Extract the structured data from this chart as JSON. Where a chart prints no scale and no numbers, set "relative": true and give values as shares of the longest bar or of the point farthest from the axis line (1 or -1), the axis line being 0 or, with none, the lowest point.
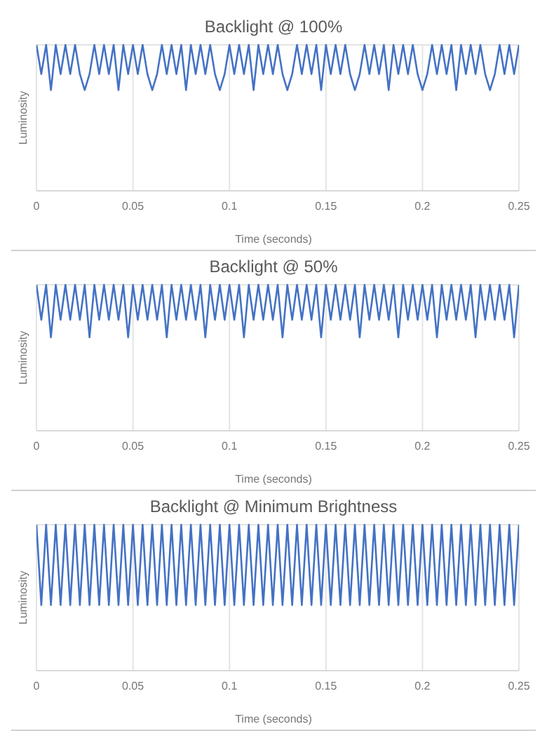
{
  "chart_data": [
    {
      "type": "line",
      "title": "Backlight @ 100%",
      "xlabel": "Time (seconds)",
      "ylabel": "Luminosity",
      "relative": true,
      "grid": true,
      "legend": false,
      "marker": "none",
      "line_style": "solid",
      "xlim": [
        0,
        0.25
      ],
      "xticks": [
        0,
        0.05,
        0.1,
        0.15,
        0.2,
        0.25
      ],
      "x": [
        0,
        0.0025,
        0.005,
        0.0075,
        0.01,
        0.0125,
        0.015,
        0.0175,
        0.02,
        0.0225,
        0.025,
        0.0275,
        0.03,
        0.0325,
        0.035,
        0.0375,
        0.04,
        0.0425,
        0.045,
        0.0475,
        0.05,
        0.0525,
        0.055,
        0.0575,
        0.06,
        0.0625,
        0.065,
        0.0675,
        0.07,
        0.0725,
        0.075,
        0.0775,
        0.08,
        0.0825,
        0.085,
        0.0875,
        0.09,
        0.0925,
        0.095,
        0.0975,
        0.1,
        0.1025,
        0.105,
        0.1075,
        0.11,
        0.1125,
        0.115,
        0.1175,
        0.12,
        0.1225,
        0.125,
        0.1275,
        0.13,
        0.1325,
        0.135,
        0.1375,
        0.14,
        0.1425,
        0.145,
        0.1475,
        0.15,
        0.1525,
        0.155,
        0.1575,
        0.16,
        0.1625,
        0.165,
        0.1675,
        0.17,
        0.1725,
        0.175,
        0.1775,
        0.18,
        0.1825,
        0.185,
        0.1875,
        0.19,
        0.1925,
        0.195,
        0.1975,
        0.2,
        0.2025,
        0.205,
        0.2075,
        0.21,
        0.2125,
        0.215,
        0.2175,
        0.22,
        0.2225,
        0.225,
        0.2275,
        0.23,
        0.2325,
        0.235,
        0.2375,
        0.24,
        0.2425,
        0.245,
        0.2475,
        0.25
      ],
      "series": [
        {
          "color": "#4472c4",
          "values": [
            1,
            0.8,
            1,
            0.69,
            1,
            0.8,
            1,
            0.8,
            1,
            0.8,
            0.69,
            0.8,
            1,
            0.8,
            1,
            0.8,
            1,
            0.69,
            1,
            0.8,
            1,
            0.8,
            1,
            0.8,
            0.69,
            0.8,
            1,
            0.8,
            1,
            0.8,
            1,
            0.69,
            1,
            0.8,
            1,
            0.8,
            1,
            0.8,
            0.69,
            0.8,
            1,
            0.8,
            1,
            0.8,
            1,
            0.69,
            1,
            0.8,
            1,
            0.8,
            1,
            0.8,
            0.69,
            0.8,
            1,
            0.8,
            1,
            0.8,
            1,
            0.69,
            1,
            0.8,
            1,
            0.8,
            1,
            0.8,
            0.69,
            0.8,
            1,
            0.8,
            1,
            0.8,
            1,
            0.69,
            1,
            0.8,
            1,
            0.8,
            1,
            0.8,
            0.69,
            0.8,
            1,
            0.8,
            1,
            0.8,
            1,
            0.69,
            1,
            0.8,
            1,
            0.8,
            1,
            0.8,
            0.69,
            0.8,
            1,
            0.8,
            1,
            0.8,
            1
          ]
        }
      ]
    },
    {
      "type": "line",
      "title": "Backlight @ 50%",
      "xlabel": "Time (seconds)",
      "ylabel": "Luminosity",
      "relative": true,
      "grid": true,
      "legend": false,
      "marker": "none",
      "line_style": "solid",
      "xlim": [
        0,
        0.25
      ],
      "xticks": [
        0,
        0.05,
        0.1,
        0.15,
        0.2,
        0.25
      ],
      "x": [
        0,
        0.0025,
        0.005,
        0.0075,
        0.01,
        0.0125,
        0.015,
        0.0175,
        0.02,
        0.0225,
        0.025,
        0.0275,
        0.03,
        0.0325,
        0.035,
        0.0375,
        0.04,
        0.0425,
        0.045,
        0.0475,
        0.05,
        0.0525,
        0.055,
        0.0575,
        0.06,
        0.0625,
        0.065,
        0.0675,
        0.07,
        0.0725,
        0.075,
        0.0775,
        0.08,
        0.0825,
        0.085,
        0.0875,
        0.09,
        0.0925,
        0.095,
        0.0975,
        0.1,
        0.1025,
        0.105,
        0.1075,
        0.11,
        0.1125,
        0.115,
        0.1175,
        0.12,
        0.1225,
        0.125,
        0.1275,
        0.13,
        0.1325,
        0.135,
        0.1375,
        0.14,
        0.1425,
        0.145,
        0.1475,
        0.15,
        0.1525,
        0.155,
        0.1575,
        0.16,
        0.1625,
        0.165,
        0.1675,
        0.17,
        0.1725,
        0.175,
        0.1775,
        0.18,
        0.1825,
        0.185,
        0.1875,
        0.19,
        0.1925,
        0.195,
        0.1975,
        0.2,
        0.2025,
        0.205,
        0.2075,
        0.21,
        0.2125,
        0.215,
        0.2175,
        0.22,
        0.2225,
        0.225,
        0.2275,
        0.23,
        0.2325,
        0.235,
        0.2375,
        0.24,
        0.2425,
        0.245,
        0.2475,
        0.25
      ],
      "series": [
        {
          "color": "#4472c4",
          "values": [
            1,
            0.76,
            1,
            0.64,
            1,
            0.76,
            1,
            0.76,
            1,
            0.76,
            1,
            0.64,
            1,
            0.76,
            1,
            0.76,
            1,
            0.76,
            1,
            0.64,
            1,
            0.76,
            1,
            0.76,
            1,
            0.76,
            1,
            0.64,
            1,
            0.76,
            1,
            0.76,
            1,
            0.76,
            1,
            0.64,
            1,
            0.76,
            1,
            0.76,
            1,
            0.76,
            1,
            0.64,
            1,
            0.76,
            1,
            0.76,
            1,
            0.76,
            1,
            0.64,
            1,
            0.76,
            1,
            0.76,
            1,
            0.76,
            1,
            0.64,
            1,
            0.76,
            1,
            0.76,
            1,
            0.76,
            1,
            0.64,
            1,
            0.76,
            1,
            0.76,
            1,
            0.76,
            1,
            0.64,
            1,
            0.76,
            1,
            0.76,
            1,
            0.76,
            1,
            0.64,
            1,
            0.76,
            1,
            0.76,
            1,
            0.76,
            1,
            0.64,
            1,
            0.76,
            1,
            0.76,
            1,
            0.76,
            1,
            0.64,
            1
          ]
        }
      ]
    },
    {
      "type": "line",
      "title": "Backlight @ Minimum Brightness",
      "xlabel": "Time (seconds)",
      "ylabel": "Luminosity",
      "relative": true,
      "grid": true,
      "legend": false,
      "marker": "none",
      "line_style": "solid",
      "xlim": [
        0,
        0.25
      ],
      "xticks": [
        0,
        0.05,
        0.1,
        0.15,
        0.2,
        0.25
      ],
      "x": [
        0,
        0.0025,
        0.005,
        0.0075,
        0.01,
        0.0125,
        0.015,
        0.0175,
        0.02,
        0.0225,
        0.025,
        0.0275,
        0.03,
        0.0325,
        0.035,
        0.0375,
        0.04,
        0.0425,
        0.045,
        0.0475,
        0.05,
        0.0525,
        0.055,
        0.0575,
        0.06,
        0.0625,
        0.065,
        0.0675,
        0.07,
        0.0725,
        0.075,
        0.0775,
        0.08,
        0.0825,
        0.085,
        0.0875,
        0.09,
        0.0925,
        0.095,
        0.0975,
        0.1,
        0.1025,
        0.105,
        0.1075,
        0.11,
        0.1125,
        0.115,
        0.1175,
        0.12,
        0.1225,
        0.125,
        0.1275,
        0.13,
        0.1325,
        0.135,
        0.1375,
        0.14,
        0.1425,
        0.145,
        0.1475,
        0.15,
        0.1525,
        0.155,
        0.1575,
        0.16,
        0.1625,
        0.165,
        0.1675,
        0.17,
        0.1725,
        0.175,
        0.1775,
        0.18,
        0.1825,
        0.185,
        0.1875,
        0.19,
        0.1925,
        0.195,
        0.1975,
        0.2,
        0.2025,
        0.205,
        0.2075,
        0.21,
        0.2125,
        0.215,
        0.2175,
        0.22,
        0.2225,
        0.225,
        0.2275,
        0.23,
        0.2325,
        0.235,
        0.2375,
        0.24,
        0.2425,
        0.245,
        0.2475,
        0.25
      ],
      "series": [
        {
          "color": "#4472c4",
          "values": [
            1,
            0.45,
            1,
            0.45,
            1,
            0.45,
            1,
            0.45,
            1,
            0.45,
            1,
            0.45,
            1,
            0.45,
            1,
            0.45,
            1,
            0.45,
            1,
            0.45,
            1,
            0.45,
            1,
            0.45,
            1,
            0.45,
            1,
            0.45,
            1,
            0.45,
            1,
            0.45,
            1,
            0.45,
            1,
            0.45,
            1,
            0.45,
            1,
            0.45,
            1,
            0.45,
            1,
            0.45,
            1,
            0.45,
            1,
            0.45,
            1,
            0.45,
            1,
            0.45,
            1,
            0.45,
            1,
            0.45,
            1,
            0.45,
            1,
            0.45,
            1,
            0.45,
            1,
            0.45,
            1,
            0.45,
            1,
            0.45,
            1,
            0.45,
            1,
            0.45,
            1,
            0.45,
            1,
            0.45,
            1,
            0.45,
            1,
            0.45,
            1,
            0.45,
            1,
            0.45,
            1,
            0.45,
            1,
            0.45,
            1,
            0.45,
            1,
            0.45,
            1,
            0.45,
            1,
            0.45,
            1,
            0.45,
            1,
            0.45,
            1
          ]
        }
      ]
    }
  ]
}
